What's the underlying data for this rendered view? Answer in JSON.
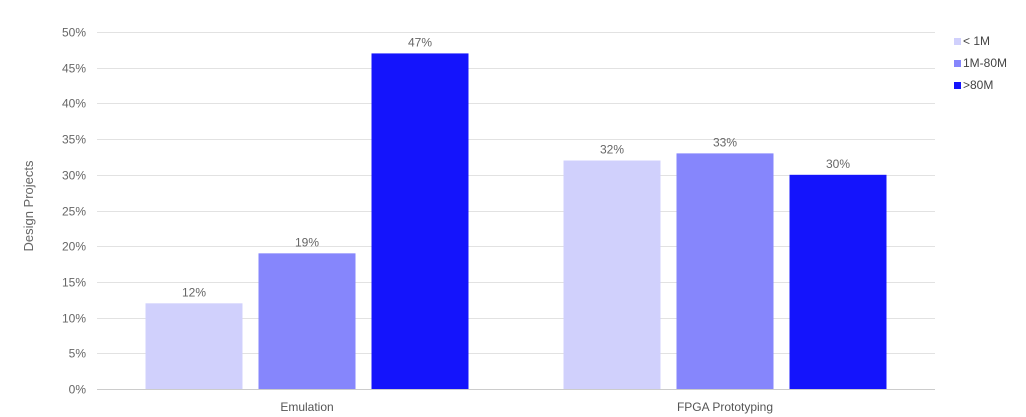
{
  "chart_data": {
    "type": "bar",
    "title": "",
    "xlabel": "",
    "ylabel": "Design Projects",
    "ylim": [
      0,
      50
    ],
    "y_ticks": [
      "0%",
      "5%",
      "10%",
      "15%",
      "20%",
      "25%",
      "30%",
      "35%",
      "40%",
      "45%",
      "50%"
    ],
    "y_tick_values": [
      0,
      5,
      10,
      15,
      20,
      25,
      30,
      35,
      40,
      45,
      50
    ],
    "categories": [
      "Emulation",
      "FPGA Prototyping"
    ],
    "series": [
      {
        "name": "< 1M",
        "color": "#d0d0fc",
        "values": [
          12,
          32
        ],
        "labels": [
          "12%",
          "32%"
        ]
      },
      {
        "name": "1M-80M",
        "color": "#8686fc",
        "values": [
          19,
          33
        ],
        "labels": [
          "19%",
          "33%"
        ]
      },
      {
        "name": ">80M",
        "color": "#1414fc",
        "values": [
          47,
          30
        ],
        "labels": [
          "47%",
          "30%"
        ]
      }
    ],
    "legend_position": "top-right",
    "grid": true
  }
}
